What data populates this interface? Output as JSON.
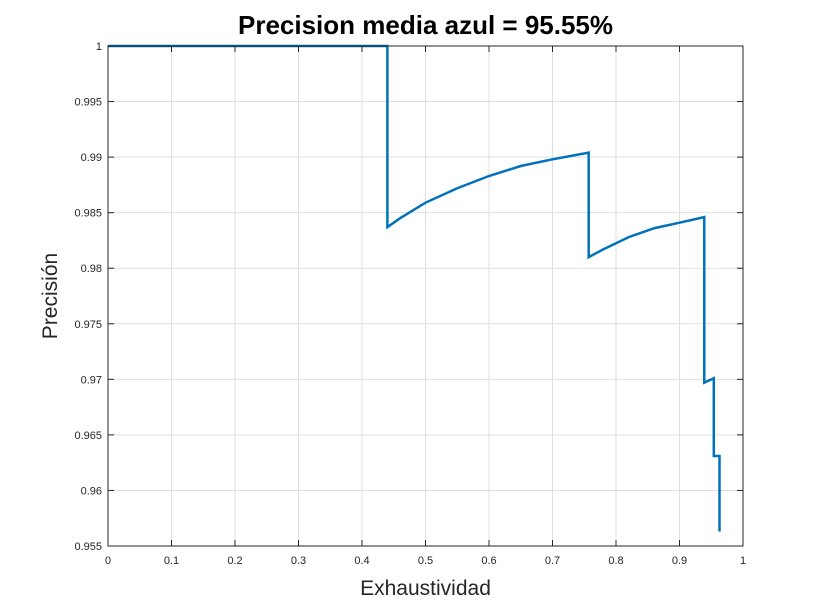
{
  "chart_data": {
    "type": "line",
    "title": "Precision media azul = 95.55%",
    "xlabel": "Exhaustividad",
    "ylabel": "Precisión",
    "xlim": [
      0,
      1
    ],
    "ylim": [
      0.955,
      1
    ],
    "grid": true,
    "x_ticks": [
      0,
      0.1,
      0.2,
      0.3,
      0.4,
      0.5,
      0.6,
      0.7,
      0.8,
      0.9,
      1
    ],
    "x_tick_labels": [
      "0",
      "0.1",
      "0.2",
      "0.3",
      "0.4",
      "0.5",
      "0.6",
      "0.7",
      "0.8",
      "0.9",
      "1"
    ],
    "y_ticks": [
      0.955,
      0.96,
      0.965,
      0.97,
      0.975,
      0.98,
      0.985,
      0.99,
      0.995,
      1
    ],
    "y_tick_labels": [
      "0.955",
      "0.96",
      "0.965",
      "0.97",
      "0.975",
      "0.98",
      "0.985",
      "0.99",
      "0.995",
      "1"
    ],
    "series": [
      {
        "color": "#0072bd",
        "x": [
          0,
          0.44,
          0.44,
          0.46,
          0.5,
          0.55,
          0.6,
          0.65,
          0.7,
          0.757,
          0.757,
          0.78,
          0.82,
          0.86,
          0.9,
          0.939,
          0.939,
          0.954,
          0.954,
          0.956,
          0.956,
          0.963,
          0.963
        ],
        "y": [
          1.0,
          1.0,
          0.9837,
          0.9845,
          0.9859,
          0.9872,
          0.9883,
          0.9892,
          0.9898,
          0.9904,
          0.981,
          0.9817,
          0.9828,
          0.9836,
          0.9841,
          0.9846,
          0.9697,
          0.9701,
          0.9631,
          0.9631,
          0.9631,
          0.9631,
          0.9563
        ]
      }
    ]
  }
}
